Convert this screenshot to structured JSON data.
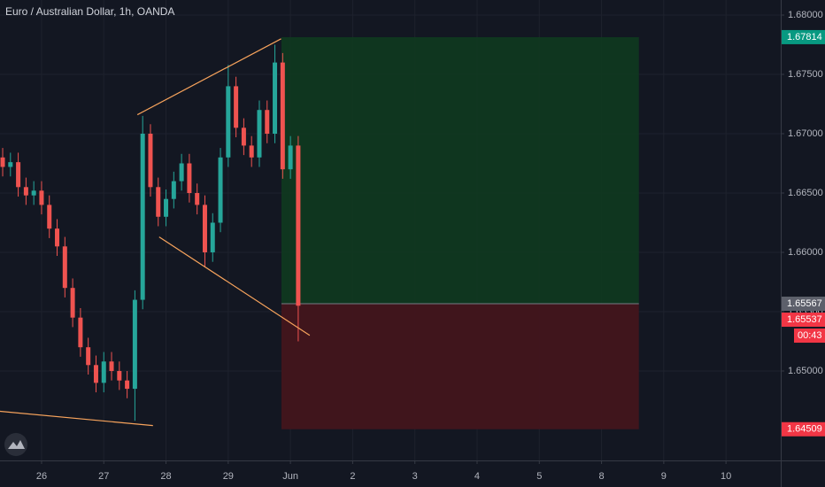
{
  "chart_data": {
    "type": "candlestick",
    "title": "Euro / Australian Dollar, 1h, OANDA",
    "up_color": "#26a69a",
    "down_color": "#ef5350",
    "x": [
      -0.625,
      -0.5,
      -0.375,
      -0.25,
      -0.125,
      0,
      0.125,
      0.25,
      0.375,
      0.5,
      0.625,
      0.75,
      0.875,
      1,
      1.125,
      1.25,
      1.375,
      1.5,
      1.625,
      1.75,
      1.875,
      2,
      2.125,
      2.25,
      2.375,
      2.5,
      2.625,
      2.75,
      2.875,
      3,
      3.125,
      3.25,
      3.375,
      3.5,
      3.625,
      3.75,
      3.875,
      4,
      4.125
    ],
    "open": [
      1.668,
      1.6672,
      1.6676,
      1.6655,
      1.6648,
      1.6652,
      1.664,
      1.662,
      1.6605,
      1.657,
      1.6545,
      1.652,
      1.6505,
      1.649,
      1.6508,
      1.65,
      1.6492,
      1.6485,
      1.656,
      1.67,
      1.6655,
      1.663,
      1.6645,
      1.666,
      1.6675,
      1.665,
      1.664,
      1.66,
      1.6625,
      1.668,
      1.674,
      1.6705,
      1.669,
      1.668,
      1.672,
      1.67,
      1.676,
      1.667,
      1.669
    ],
    "high": [
      1.6688,
      1.6684,
      1.6684,
      1.6663,
      1.666,
      1.666,
      1.6648,
      1.6628,
      1.6613,
      1.6578,
      1.6553,
      1.6528,
      1.6513,
      1.6516,
      1.6516,
      1.6508,
      1.65,
      1.6568,
      1.6715,
      1.6708,
      1.6663,
      1.6653,
      1.6668,
      1.6683,
      1.6683,
      1.6658,
      1.6648,
      1.6633,
      1.6688,
      1.6758,
      1.6748,
      1.6713,
      1.6698,
      1.6728,
      1.6728,
      1.6775,
      1.6768,
      1.6698,
      1.6698
    ],
    "low": [
      1.6664,
      1.6664,
      1.6647,
      1.664,
      1.664,
      1.6632,
      1.6612,
      1.6597,
      1.6562,
      1.6537,
      1.6512,
      1.6497,
      1.6482,
      1.6482,
      1.6492,
      1.6484,
      1.6477,
      1.6458,
      1.6552,
      1.6647,
      1.6622,
      1.6622,
      1.6637,
      1.6652,
      1.6642,
      1.6632,
      1.6588,
      1.6592,
      1.6617,
      1.6672,
      1.6697,
      1.6682,
      1.6672,
      1.6672,
      1.6692,
      1.6692,
      1.6662,
      1.6662,
      1.6525
    ],
    "close": [
      1.6672,
      1.6676,
      1.6655,
      1.6648,
      1.6652,
      1.664,
      1.662,
      1.6605,
      1.657,
      1.6545,
      1.652,
      1.6505,
      1.649,
      1.6508,
      1.65,
      1.6492,
      1.6485,
      1.656,
      1.67,
      1.6655,
      1.663,
      1.6645,
      1.666,
      1.6675,
      1.665,
      1.664,
      1.66,
      1.6625,
      1.668,
      1.674,
      1.6705,
      1.669,
      1.668,
      1.672,
      1.67,
      1.676,
      1.667,
      1.669,
      1.6555
    ],
    "xlim": [
      -0.668,
      11.88
    ],
    "ylim": [
      1.64246,
      1.68127
    ],
    "xticks": [
      {
        "value": 0,
        "label": "26"
      },
      {
        "value": 1,
        "label": "27"
      },
      {
        "value": 2,
        "label": "28"
      },
      {
        "value": 3,
        "label": "29"
      },
      {
        "value": 4,
        "label": "Jun"
      },
      {
        "value": 5,
        "label": "2"
      },
      {
        "value": 6,
        "label": "3"
      },
      {
        "value": 7,
        "label": "4"
      },
      {
        "value": 8,
        "label": "5"
      },
      {
        "value": 9,
        "label": "8"
      },
      {
        "value": 10,
        "label": "9"
      },
      {
        "value": 11,
        "label": "10"
      }
    ],
    "yticks": [
      {
        "value": 1.68,
        "label": "1.68000"
      },
      {
        "value": 1.675,
        "label": "1.67500"
      },
      {
        "value": 1.67,
        "label": "1.67000"
      },
      {
        "value": 1.665,
        "label": "1.66500"
      },
      {
        "value": 1.66,
        "label": "1.66000"
      },
      {
        "value": 1.655,
        "label": "1.65500"
      },
      {
        "value": 1.65,
        "label": "1.65000"
      }
    ],
    "trend_lines": [
      {
        "x": [
          1.54,
          3.85
        ],
        "y": [
          1.6716,
          1.678
        ]
      },
      {
        "x": [
          1.89,
          4.31
        ],
        "y": [
          1.6613,
          1.653
        ]
      },
      {
        "x": [
          -0.668,
          1.79
        ],
        "y": [
          1.6466,
          1.6454
        ]
      }
    ],
    "trend_color": "#f7a35c",
    "position": {
      "x": [
        3.855,
        9.6
      ],
      "entry": {
        "value": 1.65567,
        "label": "1.65567"
      },
      "target": {
        "value": 1.67814,
        "label": "1.67814"
      },
      "stop": {
        "value": 1.64509,
        "label": "1.64509"
      }
    },
    "last_price": {
      "value": 1.65537,
      "label": "1.65537"
    },
    "countdown": "00:43"
  }
}
